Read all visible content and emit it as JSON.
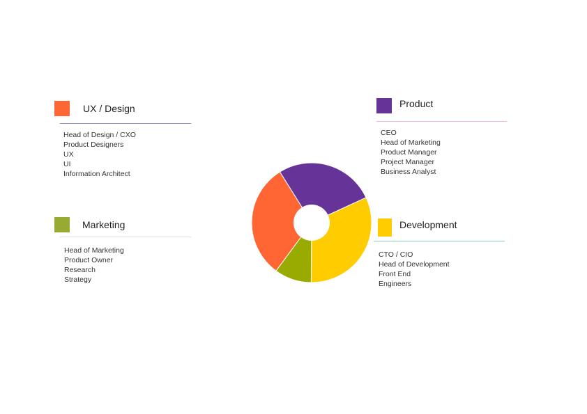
{
  "chart_data": {
    "type": "pie",
    "style": "donut",
    "title": "",
    "slices": [
      {
        "label": "Product",
        "value": 27,
        "color": "#663399"
      },
      {
        "label": "Development",
        "value": 32,
        "color": "#ffcc00"
      },
      {
        "label": "Marketing",
        "value": 10,
        "color": "#99aa00"
      },
      {
        "label": "UX / Design",
        "value": 31,
        "color": "#ff6633"
      }
    ]
  },
  "groups": {
    "ux": {
      "title": "UX / Design",
      "color": "#ff6633",
      "rule_color": "#9b8fc4",
      "items": [
        "Head of Design / CXO",
        "Product Designers",
        "UX",
        "UI",
        "Information Architect"
      ]
    },
    "marketing": {
      "title": "Marketing",
      "color": "#99aa33",
      "rule_color": "#dddddd",
      "items": [
        "Head of Marketing",
        "Product Owner",
        "Research",
        "Strategy"
      ]
    },
    "product": {
      "title": "Product",
      "color": "#663399",
      "rule_color": "#f0b8d8",
      "items": [
        "CEO",
        "Head of Marketing",
        "Product Manager",
        "Project Manager",
        "Business Analyst"
      ]
    },
    "development": {
      "title": "Development",
      "color": "#ffcc00",
      "rule_color": "#88c8c8",
      "items": [
        "CTO / CIO",
        "Head of Development",
        "Front End",
        "Engineers"
      ]
    }
  }
}
